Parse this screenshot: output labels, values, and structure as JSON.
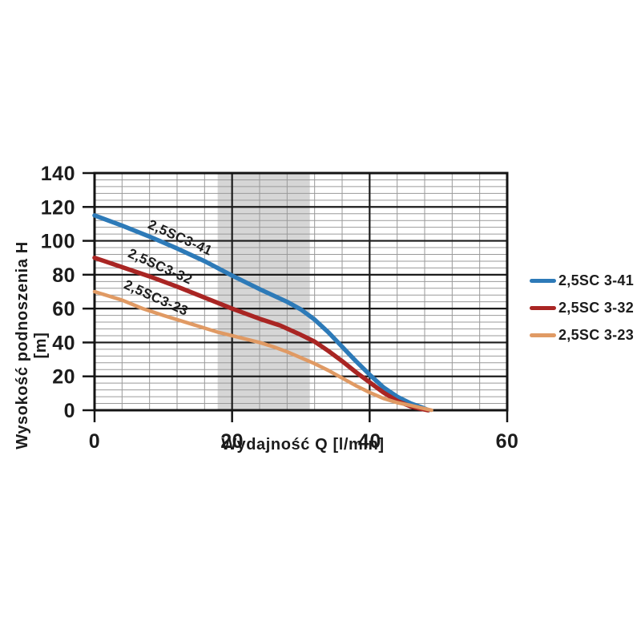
{
  "styles": {
    "background": "#ffffff",
    "grid_minor_color": "#9a9a9a",
    "grid_major_color": "#1c1c1c",
    "border_color": "#141414",
    "text_color": "#1c1c1c",
    "band_color": "#d6d6d6"
  },
  "chart_data": {
    "type": "line",
    "title": "",
    "xlabel": "Wydajność Q [l/min]",
    "ylabel": "Wysokość podnoszenia H [m]",
    "xlim": [
      0,
      60
    ],
    "ylim": [
      0,
      140
    ],
    "x_ticks": [
      0,
      20,
      40,
      60
    ],
    "y_ticks": [
      0,
      20,
      40,
      60,
      80,
      100,
      120,
      140
    ],
    "minor_grid_step": 4,
    "grid": "on",
    "legend_position": "right",
    "highlight_band": {
      "q_from": 17.9,
      "q_to": 31.3
    },
    "series": [
      {
        "name": "2,5SC 3-41",
        "inline_label": "2,5SC3-41",
        "color": "#2d7ab8",
        "label_pos": {
          "q": 12.2,
          "h": 99.5,
          "angle": 24
        },
        "points": [
          [
            0,
            115
          ],
          [
            4,
            109
          ],
          [
            8,
            102.5
          ],
          [
            12,
            95.5
          ],
          [
            16,
            88
          ],
          [
            20,
            79.5
          ],
          [
            24,
            71.5
          ],
          [
            28,
            64
          ],
          [
            30,
            59.5
          ],
          [
            32,
            53.5
          ],
          [
            34,
            46
          ],
          [
            36,
            37.5
          ],
          [
            38,
            29
          ],
          [
            40,
            21
          ],
          [
            42,
            13.5
          ],
          [
            44,
            8
          ],
          [
            46,
            4
          ],
          [
            47.5,
            1.8
          ],
          [
            48.6,
            0
          ]
        ]
      },
      {
        "name": "2,5SC 3-32",
        "inline_label": "2,5SC3-32",
        "color": "#a92523",
        "label_pos": {
          "q": 9.3,
          "h": 82.5,
          "angle": 24
        },
        "points": [
          [
            0,
            90
          ],
          [
            4,
            84.5
          ],
          [
            8,
            79
          ],
          [
            12,
            73
          ],
          [
            16,
            66.5
          ],
          [
            20,
            60
          ],
          [
            24,
            54
          ],
          [
            27,
            50
          ],
          [
            30,
            44.5
          ],
          [
            32,
            40.5
          ],
          [
            34,
            35
          ],
          [
            36,
            29
          ],
          [
            38,
            22.5
          ],
          [
            40,
            16.5
          ],
          [
            42,
            10.5
          ],
          [
            44,
            5.5
          ],
          [
            46,
            2.2
          ],
          [
            47.5,
            0.8
          ],
          [
            48.5,
            0
          ]
        ]
      },
      {
        "name": "2,5SC 3-23",
        "inline_label": "2,5SC3-23",
        "color": "#e09a64",
        "label_pos": {
          "q": 8.7,
          "h": 64,
          "angle": 24
        },
        "points": [
          [
            0,
            70
          ],
          [
            4,
            65
          ],
          [
            7,
            60
          ],
          [
            10,
            56
          ],
          [
            14,
            51
          ],
          [
            18,
            46
          ],
          [
            20,
            44
          ],
          [
            22,
            42
          ],
          [
            24,
            40
          ],
          [
            26,
            37.5
          ],
          [
            28,
            34.5
          ],
          [
            30,
            31
          ],
          [
            32,
            27.5
          ],
          [
            34,
            23.5
          ],
          [
            36,
            19
          ],
          [
            38,
            14.5
          ],
          [
            40,
            10.5
          ],
          [
            42,
            7
          ],
          [
            44,
            4.5
          ],
          [
            46,
            2.8
          ],
          [
            49,
            0
          ]
        ]
      }
    ]
  }
}
